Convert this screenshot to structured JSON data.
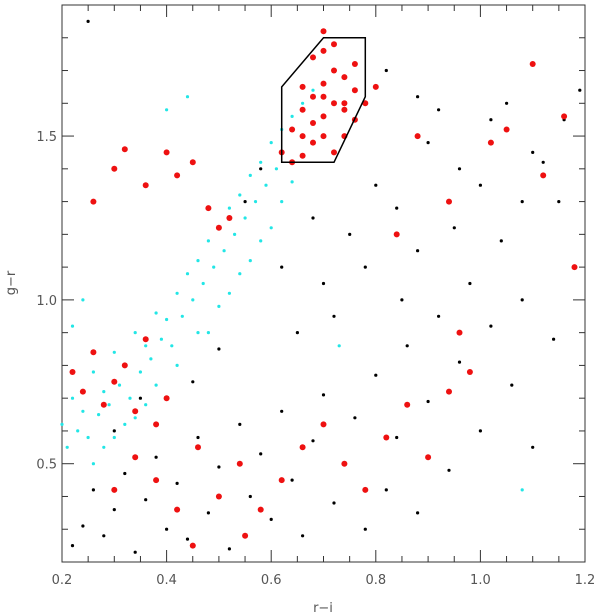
{
  "chart_data": {
    "type": "scatter",
    "title": "",
    "xlabel": "r−i",
    "ylabel": "g−r",
    "xlim": [
      0.2,
      1.2
    ],
    "ylim": [
      0.2,
      1.9
    ],
    "grid": false,
    "legend": "none",
    "x_ticks": [
      {
        "value": 0.2,
        "label": "0.2"
      },
      {
        "value": 0.4,
        "label": "0.4"
      },
      {
        "value": 0.6,
        "label": "0.6"
      },
      {
        "value": 0.8,
        "label": "0.8"
      },
      {
        "value": 1.0,
        "label": "1.0"
      },
      {
        "value": 1.2,
        "label": "1.2"
      }
    ],
    "y_ticks": [
      {
        "value": 0.5,
        "label": "0.5"
      },
      {
        "value": 1.0,
        "label": "1.0"
      },
      {
        "value": 1.5,
        "label": "1.5"
      }
    ],
    "series": [
      {
        "color": "#000000",
        "marker": "dot",
        "points": [
          [
            0.22,
            0.25
          ],
          [
            0.24,
            0.31
          ],
          [
            0.26,
            0.42
          ],
          [
            0.28,
            0.28
          ],
          [
            0.3,
            0.36
          ],
          [
            0.32,
            0.47
          ],
          [
            0.34,
            0.23
          ],
          [
            0.36,
            0.39
          ],
          [
            0.38,
            0.52
          ],
          [
            0.4,
            0.3
          ],
          [
            0.42,
            0.44
          ],
          [
            0.44,
            0.27
          ],
          [
            0.46,
            0.58
          ],
          [
            0.48,
            0.35
          ],
          [
            0.5,
            0.49
          ],
          [
            0.52,
            0.24
          ],
          [
            0.54,
            0.62
          ],
          [
            0.56,
            0.4
          ],
          [
            0.58,
            0.53
          ],
          [
            0.6,
            0.33
          ],
          [
            0.62,
            0.66
          ],
          [
            0.64,
            0.45
          ],
          [
            0.66,
            0.28
          ],
          [
            0.68,
            0.57
          ],
          [
            0.7,
            0.71
          ],
          [
            0.72,
            0.38
          ],
          [
            0.74,
            0.5
          ],
          [
            0.76,
            0.64
          ],
          [
            0.78,
            0.3
          ],
          [
            0.8,
            0.77
          ],
          [
            0.82,
            0.42
          ],
          [
            0.84,
            0.58
          ],
          [
            0.86,
            0.86
          ],
          [
            0.88,
            0.35
          ],
          [
            0.9,
            0.69
          ],
          [
            0.92,
            0.95
          ],
          [
            0.94,
            0.48
          ],
          [
            0.96,
            0.81
          ],
          [
            0.98,
            1.05
          ],
          [
            1.0,
            0.6
          ],
          [
            1.02,
            0.92
          ],
          [
            1.04,
            1.18
          ],
          [
            1.06,
            0.74
          ],
          [
            1.08,
            1.3
          ],
          [
            1.1,
            0.55
          ],
          [
            1.12,
            1.42
          ],
          [
            1.14,
            0.88
          ],
          [
            1.16,
            1.55
          ],
          [
            1.18,
            1.1
          ],
          [
            1.19,
            1.64
          ],
          [
            0.65,
            0.9
          ],
          [
            0.7,
            1.05
          ],
          [
            0.75,
            1.2
          ],
          [
            0.8,
            1.35
          ],
          [
            0.85,
            1.0
          ],
          [
            0.9,
            1.48
          ],
          [
            0.95,
            1.22
          ],
          [
            1.0,
            1.35
          ],
          [
            1.05,
            1.6
          ],
          [
            1.1,
            1.45
          ],
          [
            0.62,
            1.1
          ],
          [
            0.68,
            1.25
          ],
          [
            0.72,
            0.95
          ],
          [
            0.78,
            1.1
          ],
          [
            0.84,
            1.28
          ],
          [
            0.88,
            1.15
          ],
          [
            0.96,
            1.4
          ],
          [
            1.02,
            1.55
          ],
          [
            1.08,
            1.0
          ],
          [
            1.15,
            1.3
          ],
          [
            0.25,
            1.85
          ],
          [
            0.82,
            1.7
          ],
          [
            0.88,
            1.62
          ],
          [
            0.92,
            1.58
          ],
          [
            0.58,
            1.4
          ],
          [
            0.55,
            1.3
          ],
          [
            0.3,
            0.6
          ],
          [
            0.35,
            0.7
          ],
          [
            0.45,
            0.75
          ],
          [
            0.5,
            0.85
          ]
        ]
      },
      {
        "color": "#22e6e6",
        "marker": "dot",
        "points": [
          [
            0.2,
            0.62
          ],
          [
            0.22,
            0.7
          ],
          [
            0.24,
            0.66
          ],
          [
            0.26,
            0.78
          ],
          [
            0.28,
            0.72
          ],
          [
            0.3,
            0.84
          ],
          [
            0.32,
            0.8
          ],
          [
            0.34,
            0.9
          ],
          [
            0.36,
            0.86
          ],
          [
            0.38,
            0.96
          ],
          [
            0.4,
            0.94
          ],
          [
            0.42,
            1.02
          ],
          [
            0.44,
            1.08
          ],
          [
            0.46,
            1.12
          ],
          [
            0.48,
            1.18
          ],
          [
            0.5,
            1.22
          ],
          [
            0.52,
            1.28
          ],
          [
            0.54,
            1.32
          ],
          [
            0.56,
            1.38
          ],
          [
            0.58,
            1.42
          ],
          [
            0.6,
            1.48
          ],
          [
            0.62,
            1.52
          ],
          [
            0.64,
            1.56
          ],
          [
            0.66,
            1.6
          ],
          [
            0.68,
            1.64
          ],
          [
            0.21,
            0.55
          ],
          [
            0.23,
            0.6
          ],
          [
            0.25,
            0.58
          ],
          [
            0.27,
            0.65
          ],
          [
            0.29,
            0.68
          ],
          [
            0.31,
            0.74
          ],
          [
            0.33,
            0.7
          ],
          [
            0.35,
            0.78
          ],
          [
            0.37,
            0.82
          ],
          [
            0.39,
            0.88
          ],
          [
            0.41,
            0.86
          ],
          [
            0.43,
            0.95
          ],
          [
            0.45,
            1.0
          ],
          [
            0.47,
            1.05
          ],
          [
            0.49,
            1.1
          ],
          [
            0.51,
            1.15
          ],
          [
            0.53,
            1.2
          ],
          [
            0.55,
            1.25
          ],
          [
            0.57,
            1.3
          ],
          [
            0.59,
            1.35
          ],
          [
            0.61,
            1.4
          ],
          [
            0.22,
            0.92
          ],
          [
            0.24,
            1.0
          ],
          [
            0.4,
            1.58
          ],
          [
            0.44,
            1.62
          ],
          [
            0.26,
            0.5
          ],
          [
            0.28,
            0.55
          ],
          [
            0.32,
            0.62
          ],
          [
            0.36,
            0.68
          ],
          [
            0.42,
            0.8
          ],
          [
            0.46,
            0.9
          ],
          [
            0.5,
            0.98
          ],
          [
            0.54,
            1.08
          ],
          [
            0.58,
            1.18
          ],
          [
            0.62,
            1.3
          ],
          [
            0.73,
            0.86
          ],
          [
            1.08,
            0.42
          ],
          [
            0.38,
            0.74
          ],
          [
            0.34,
            0.64
          ],
          [
            0.3,
            0.58
          ],
          [
            0.48,
            0.9
          ],
          [
            0.52,
            1.02
          ],
          [
            0.56,
            1.12
          ],
          [
            0.6,
            1.22
          ],
          [
            0.64,
            1.36
          ]
        ]
      },
      {
        "color": "#ee1111",
        "marker": "circle",
        "points": [
          [
            0.64,
            1.52
          ],
          [
            0.66,
            1.58
          ],
          [
            0.68,
            1.62
          ],
          [
            0.7,
            1.66
          ],
          [
            0.72,
            1.7
          ],
          [
            0.74,
            1.6
          ],
          [
            0.76,
            1.55
          ],
          [
            0.7,
            1.5
          ],
          [
            0.72,
            1.45
          ],
          [
            0.68,
            1.48
          ],
          [
            0.66,
            1.44
          ],
          [
            0.74,
            1.68
          ],
          [
            0.76,
            1.72
          ],
          [
            0.7,
            1.76
          ],
          [
            0.68,
            1.74
          ],
          [
            0.72,
            1.78
          ],
          [
            0.74,
            1.5
          ],
          [
            0.66,
            1.65
          ],
          [
            0.64,
            1.42
          ],
          [
            0.62,
            1.45
          ],
          [
            0.7,
            1.56
          ],
          [
            0.72,
            1.6
          ],
          [
            0.68,
            1.54
          ],
          [
            0.76,
            1.64
          ],
          [
            0.66,
            1.5
          ],
          [
            0.7,
            1.62
          ],
          [
            0.74,
            1.58
          ],
          [
            0.78,
            1.6
          ],
          [
            0.8,
            1.65
          ],
          [
            0.7,
            1.82
          ],
          [
            0.26,
            1.3
          ],
          [
            0.3,
            1.4
          ],
          [
            0.32,
            1.46
          ],
          [
            0.36,
            1.35
          ],
          [
            0.4,
            1.45
          ],
          [
            0.42,
            1.38
          ],
          [
            0.45,
            1.42
          ],
          [
            0.48,
            1.28
          ],
          [
            0.5,
            1.22
          ],
          [
            0.52,
            1.25
          ],
          [
            0.22,
            0.78
          ],
          [
            0.24,
            0.72
          ],
          [
            0.26,
            0.84
          ],
          [
            0.28,
            0.68
          ],
          [
            0.3,
            0.75
          ],
          [
            0.32,
            0.8
          ],
          [
            0.34,
            0.66
          ],
          [
            0.36,
            0.88
          ],
          [
            0.38,
            0.62
          ],
          [
            0.4,
            0.7
          ],
          [
            0.3,
            0.42
          ],
          [
            0.34,
            0.52
          ],
          [
            0.38,
            0.45
          ],
          [
            0.42,
            0.36
          ],
          [
            0.46,
            0.55
          ],
          [
            0.5,
            0.4
          ],
          [
            0.54,
            0.5
          ],
          [
            0.58,
            0.36
          ],
          [
            0.62,
            0.45
          ],
          [
            0.66,
            0.55
          ],
          [
            0.7,
            0.62
          ],
          [
            0.74,
            0.5
          ],
          [
            0.78,
            0.42
          ],
          [
            0.82,
            0.58
          ],
          [
            0.86,
            0.68
          ],
          [
            0.9,
            0.52
          ],
          [
            0.94,
            0.72
          ],
          [
            0.98,
            0.78
          ],
          [
            1.02,
            1.48
          ],
          [
            1.05,
            1.52
          ],
          [
            1.12,
            1.38
          ],
          [
            1.16,
            1.56
          ],
          [
            1.18,
            1.1
          ],
          [
            1.1,
            1.72
          ],
          [
            0.88,
            1.5
          ],
          [
            0.94,
            1.3
          ],
          [
            0.96,
            0.9
          ],
          [
            0.84,
            1.2
          ],
          [
            0.45,
            0.25
          ],
          [
            0.55,
            0.28
          ]
        ]
      }
    ],
    "region": {
      "color": "#000000",
      "vertices": [
        [
          0.62,
          1.42
        ],
        [
          0.62,
          1.65
        ],
        [
          0.7,
          1.8
        ],
        [
          0.78,
          1.8
        ],
        [
          0.78,
          1.62
        ],
        [
          0.72,
          1.42
        ]
      ]
    }
  }
}
